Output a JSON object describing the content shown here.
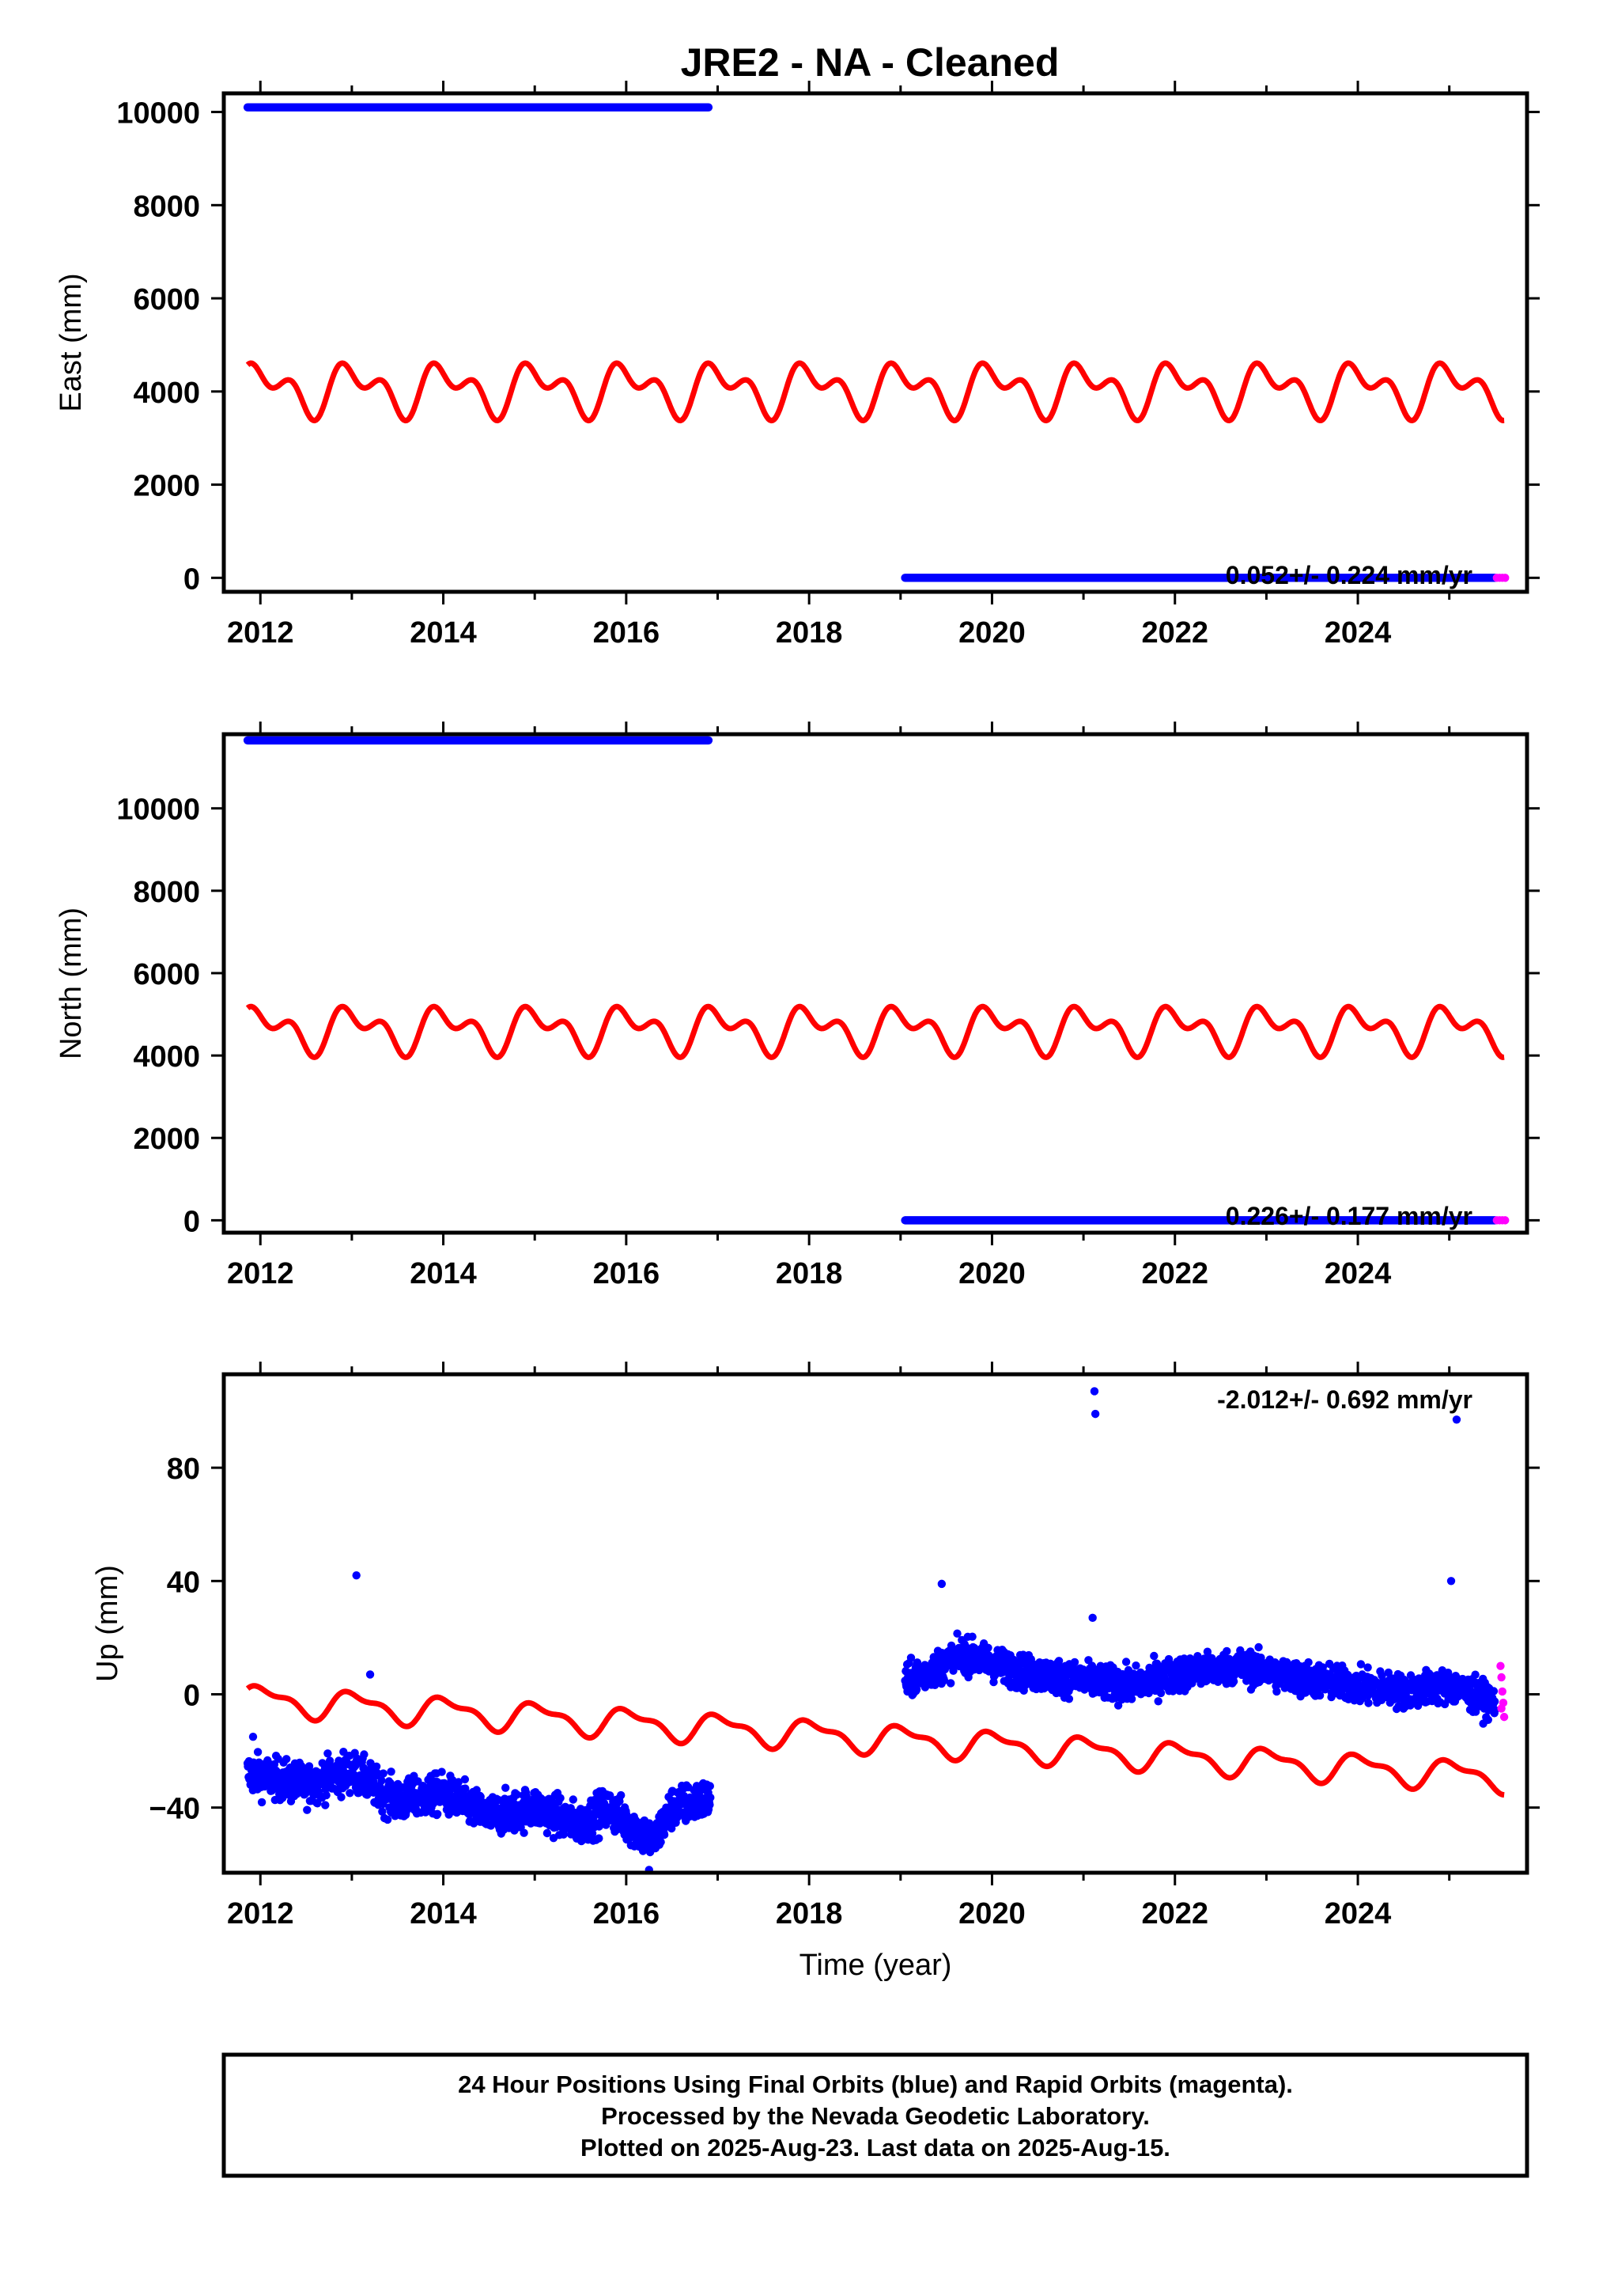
{
  "title": "JRE2  - NA - Cleaned",
  "x_axis_label": "Time (year)",
  "footer": {
    "line1": "24 Hour Positions Using Final Orbits (blue) and Rapid Orbits (magenta).",
    "line2": "Processed by the Nevada Geodetic Laboratory.",
    "line3": "Plotted on 2025-Aug-23. Last data on 2025-Aug-15."
  },
  "colors": {
    "final_orbits": "#0000ff",
    "rapid_orbits": "#ff00ff",
    "model": "#ff0000",
    "frame": "#000000"
  },
  "chart_data": [
    {
      "type": "scatter",
      "ylabel": "East (mm)",
      "rate": "0.052+/- 0.224 mm/yr",
      "xlim": [
        2011.6,
        2025.85
      ],
      "ylim": [
        -300,
        10400
      ],
      "xticks": [
        2012,
        2014,
        2016,
        2018,
        2020,
        2022,
        2024
      ],
      "yticks": [
        0,
        2000,
        4000,
        6000,
        8000,
        10000
      ],
      "grid": false,
      "series": [
        {
          "name": "Final Orbits",
          "color": "#0000ff",
          "segments": [
            {
              "x": [
                2011.86,
                2016.9
              ],
              "y": [
                10100,
                10100
              ]
            },
            {
              "x": [
                2019.05,
                2025.5
              ],
              "y": [
                0,
                0
              ]
            }
          ]
        },
        {
          "name": "Rapid Orbits",
          "color": "#ff00ff",
          "points": [
            [
              2025.52,
              0
            ],
            [
              2025.55,
              0
            ],
            [
              2025.58,
              0
            ],
            [
              2025.61,
              0
            ]
          ]
        },
        {
          "name": "Model",
          "color": "#ff0000",
          "model": {
            "x0": 2011.86,
            "x1": 2025.6,
            "mean": 4060,
            "trend": 0,
            "amp_annual": 400,
            "amp_semiannual": 320,
            "phase": 0.2
          }
        }
      ]
    },
    {
      "type": "scatter",
      "ylabel": "North (mm)",
      "rate": "0.226+/- 0.177 mm/yr",
      "xlim": [
        2011.6,
        2025.85
      ],
      "ylim": [
        -300,
        11800
      ],
      "xticks": [
        2012,
        2014,
        2016,
        2018,
        2020,
        2022,
        2024
      ],
      "yticks": [
        0,
        2000,
        4000,
        6000,
        8000,
        10000
      ],
      "grid": false,
      "series": [
        {
          "name": "Final Orbits",
          "color": "#0000ff",
          "segments": [
            {
              "x": [
                2011.86,
                2016.9
              ],
              "y": [
                11650,
                11650
              ]
            },
            {
              "x": [
                2019.05,
                2025.5
              ],
              "y": [
                0,
                0
              ]
            }
          ]
        },
        {
          "name": "Rapid Orbits",
          "color": "#ff00ff",
          "points": [
            [
              2025.52,
              0
            ],
            [
              2025.55,
              0
            ],
            [
              2025.58,
              0
            ],
            [
              2025.61,
              0
            ]
          ]
        },
        {
          "name": "Model",
          "color": "#ff0000",
          "model": {
            "x0": 2011.86,
            "x1": 2025.6,
            "mean": 4640,
            "trend": 0,
            "amp_annual": 400,
            "amp_semiannual": 320,
            "phase": 0.2
          }
        }
      ]
    },
    {
      "type": "scatter",
      "ylabel": "Up (mm)",
      "rate": "-2.012+/- 0.692 mm/yr",
      "xlim": [
        2011.6,
        2025.85
      ],
      "ylim": [
        -63,
        113
      ],
      "xticks": [
        2012,
        2014,
        2016,
        2018,
        2020,
        2022,
        2024
      ],
      "yticks": [
        -40,
        0,
        40,
        80
      ],
      "grid": false,
      "series": [
        {
          "name": "Final Orbits",
          "color": "#0000ff",
          "clusters": [
            {
              "x0": 2011.86,
              "x1": 2016.92,
              "trend": [
                [
                  2011.9,
                  -28
                ],
                [
                  2012.5,
                  -32
                ],
                [
                  2013.0,
                  -27
                ],
                [
                  2013.5,
                  -38
                ],
                [
                  2014.0,
                  -35
                ],
                [
                  2014.5,
                  -43
                ],
                [
                  2015.0,
                  -40
                ],
                [
                  2015.5,
                  -46
                ],
                [
                  2015.8,
                  -40
                ],
                [
                  2016.0,
                  -45
                ],
                [
                  2016.3,
                  -52
                ],
                [
                  2016.5,
                  -40
                ],
                [
                  2016.9,
                  -37
                ]
              ],
              "spread": 6,
              "n": 1300
            },
            {
              "x0": 2019.05,
              "x1": 2025.5,
              "trend": [
                [
                  2019.1,
                  5
                ],
                [
                  2019.7,
                  14
                ],
                [
                  2020.3,
                  8
                ],
                [
                  2021.0,
                  5
                ],
                [
                  2021.5,
                  3
                ],
                [
                  2022.0,
                  7
                ],
                [
                  2022.7,
                  10
                ],
                [
                  2023.3,
                  6
                ],
                [
                  2024.0,
                  3
                ],
                [
                  2024.5,
                  1
                ],
                [
                  2025.0,
                  3
                ],
                [
                  2025.5,
                  -3
                ]
              ],
              "spread": 5,
              "n": 1800
            }
          ],
          "outliers": [
            [
              2013.05,
              42
            ],
            [
              2013.2,
              7
            ],
            [
              2019.45,
              39
            ],
            [
              2021.1,
              27
            ],
            [
              2021.12,
              107
            ],
            [
              2021.13,
              99
            ],
            [
              2025.02,
              40
            ],
            [
              2025.08,
              97
            ],
            [
              2011.92,
              -15
            ],
            [
              2016.25,
              -62
            ]
          ]
        },
        {
          "name": "Rapid Orbits",
          "color": "#ff00ff",
          "points": [
            [
              2025.56,
              10
            ],
            [
              2025.57,
              6
            ],
            [
              2025.58,
              1
            ],
            [
              2025.59,
              -3
            ],
            [
              2025.6,
              -8
            ],
            [
              2025.57,
              -5
            ]
          ]
        },
        {
          "name": "Model",
          "color": "#ff0000",
          "model": {
            "x0": 2011.86,
            "x1": 2025.6,
            "mean": -2,
            "trend": -2.012,
            "trend_ref": 2012.0,
            "amp_annual": 4.5,
            "amp_semiannual": 2,
            "phase": 0.1
          }
        }
      ]
    }
  ]
}
